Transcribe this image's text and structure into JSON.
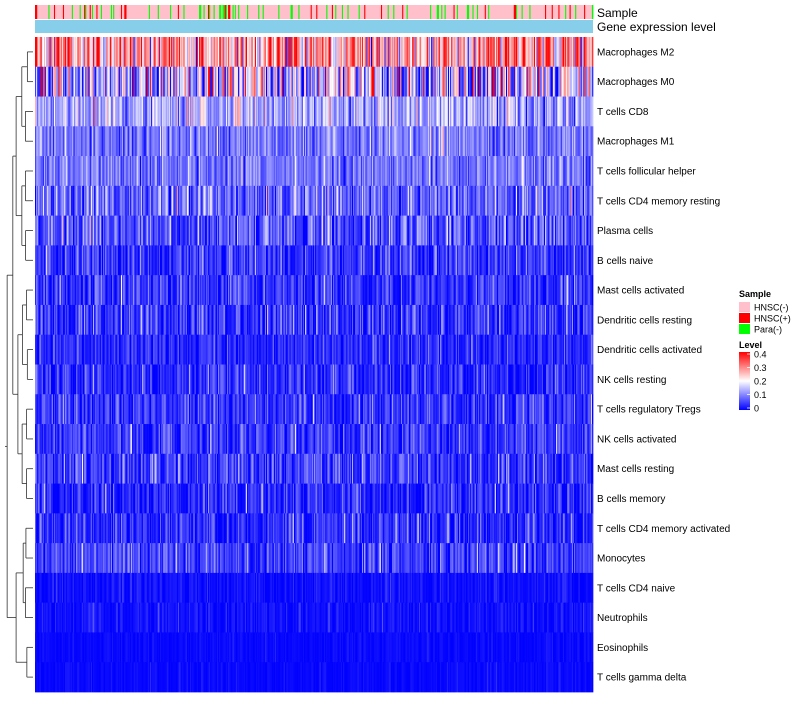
{
  "chart_data": {
    "type": "heatmap",
    "title": "",
    "annotation_tracks": [
      {
        "name": "Sample",
        "label": "Sample"
      },
      {
        "name": "Gene expression level",
        "label": "Gene expression level"
      }
    ],
    "rows": [
      {
        "label": "Macrophages M2",
        "mean": 0.27,
        "spread": 0.13
      },
      {
        "label": "Macrophages M0",
        "mean": 0.14,
        "spread": 0.17
      },
      {
        "label": "T cells CD8",
        "mean": 0.13,
        "spread": 0.07
      },
      {
        "label": "Macrophages M1",
        "mean": 0.09,
        "spread": 0.05
      },
      {
        "label": "T cells follicular helper",
        "mean": 0.09,
        "spread": 0.05
      },
      {
        "label": "T cells CD4 memory resting",
        "mean": 0.08,
        "spread": 0.07
      },
      {
        "label": "Plasma cells",
        "mean": 0.06,
        "spread": 0.07
      },
      {
        "label": "B cells naive",
        "mean": 0.04,
        "spread": 0.05
      },
      {
        "label": "Mast cells activated",
        "mean": 0.04,
        "spread": 0.05
      },
      {
        "label": "Dendritic cells resting",
        "mean": 0.04,
        "spread": 0.06
      },
      {
        "label": "Dendritic cells activated",
        "mean": 0.03,
        "spread": 0.04
      },
      {
        "label": "NK cells resting",
        "mean": 0.03,
        "spread": 0.05
      },
      {
        "label": "T cells regulatory  Tregs",
        "mean": 0.04,
        "spread": 0.05
      },
      {
        "label": "NK cells activated",
        "mean": 0.04,
        "spread": 0.05
      },
      {
        "label": "Mast cells resting",
        "mean": 0.04,
        "spread": 0.06
      },
      {
        "label": "B cells memory",
        "mean": 0.03,
        "spread": 0.05
      },
      {
        "label": "T cells CD4 memory activated",
        "mean": 0.03,
        "spread": 0.05
      },
      {
        "label": "Monocytes",
        "mean": 0.05,
        "spread": 0.05
      },
      {
        "label": "T cells CD4 naive",
        "mean": 0.01,
        "spread": 0.02
      },
      {
        "label": "Neutrophils",
        "mean": 0.01,
        "spread": 0.02
      },
      {
        "label": "Eosinophils",
        "mean": 0.005,
        "spread": 0.01
      },
      {
        "label": "T cells gamma delta",
        "mean": 0.005,
        "spread": 0.01
      }
    ],
    "columns_count": 500,
    "sample_groups": [
      {
        "label": "HNSC(-)",
        "color": "#ffc0cb",
        "share": 0.83
      },
      {
        "label": "HNSC(+)",
        "color": "#ff0000",
        "share": 0.07
      },
      {
        "label": "Para(-)",
        "color": "#00ff00",
        "share": 0.1
      }
    ],
    "expression_track_color": "#87ceeb",
    "color_scale": {
      "low": "#0000ff",
      "mid": "#ffffff",
      "high": "#ff0000",
      "min": 0,
      "midpoint": 0.2,
      "max": 0.4
    },
    "legend": {
      "sample_title": "Sample",
      "level_title": "Level",
      "level_ticks": [
        "0.4",
        "0.3",
        "0.2",
        "0.1",
        "0"
      ],
      "position": "right"
    },
    "row_dendrogram": true
  }
}
